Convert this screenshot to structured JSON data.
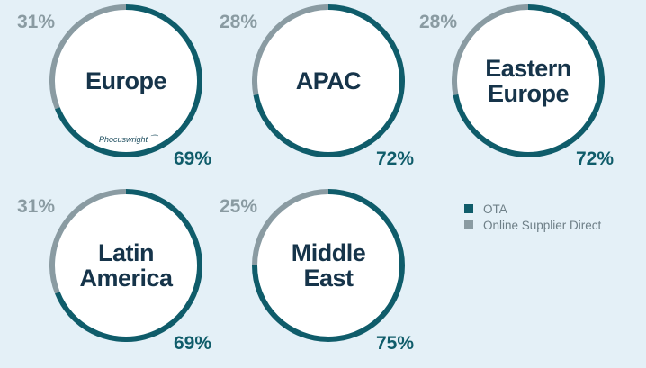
{
  "colors": {
    "ota": "#0f5c6a",
    "supplier": "#8a9ba2",
    "inner": "#ffffff",
    "text": "#16344a"
  },
  "logo_text": "Phocuswright",
  "legend": [
    {
      "label": "OTA",
      "color": "#0f5c6a"
    },
    {
      "label": "Online Supplier Direct",
      "color": "#8a9ba2"
    }
  ],
  "chart_data": {
    "type": "pie",
    "series_names": [
      "OTA",
      "Online Supplier Direct"
    ],
    "charts": [
      {
        "region": "Europe",
        "label_lines": "Europe",
        "ota": 69,
        "supplier": 31,
        "ota_label": "69%",
        "supplier_label": "31%",
        "has_logo": true
      },
      {
        "region": "APAC",
        "label_lines": "APAC",
        "ota": 72,
        "supplier": 28,
        "ota_label": "72%",
        "supplier_label": "28%"
      },
      {
        "region": "Eastern Europe",
        "label_lines": "Eastern\nEurope",
        "ota": 72,
        "supplier": 28,
        "ota_label": "72%",
        "supplier_label": "28%"
      },
      {
        "region": "Latin America",
        "label_lines": "Latin\nAmerica",
        "ota": 69,
        "supplier": 31,
        "ota_label": "69%",
        "supplier_label": "31%"
      },
      {
        "region": "Middle East",
        "label_lines": "Middle\nEast",
        "ota": 75,
        "supplier": 25,
        "ota_label": "75%",
        "supplier_label": "25%"
      }
    ]
  }
}
